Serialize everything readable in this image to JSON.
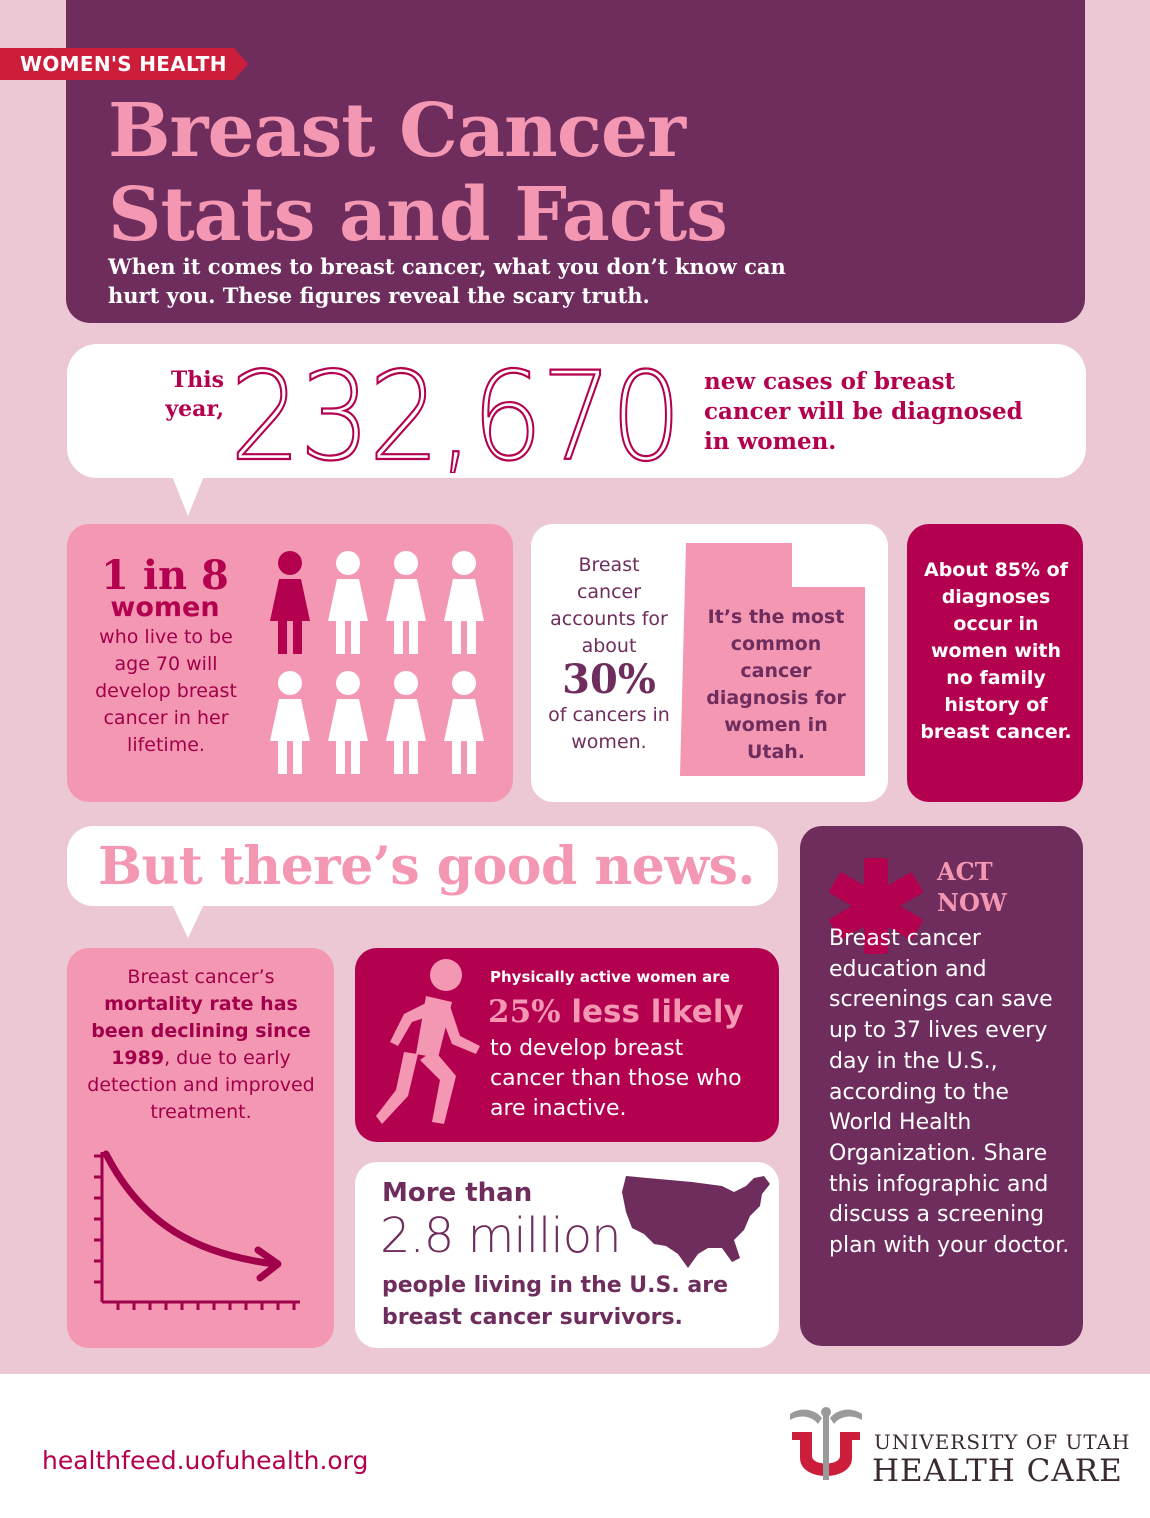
{
  "colors": {
    "background": "#ecc8d4",
    "plum": "#6e2d5d",
    "pink": "#f497b3",
    "magenta": "#b3004f",
    "red_tag": "#cc1d3a",
    "white": "#ffffff"
  },
  "header": {
    "tag": "WOMEN'S HEALTH",
    "title_line1": "Breast Cancer",
    "title_line2": "Stats and Facts",
    "subtitle": "When it comes to breast cancer, what you don’t know can hurt you. These figures reveal the scary truth."
  },
  "cases": {
    "lead": "This year,",
    "number": "232,670",
    "trail": "new cases of breast cancer will be diagnosed in women."
  },
  "one_in_eight": {
    "stat": "1 in 8",
    "word": "women",
    "description": "who live to be age 70 will develop breast cancer in her lifetime.",
    "icon_count": 8,
    "highlighted": 1
  },
  "thirty_percent": {
    "lead": "Breast cancer accounts for about",
    "stat": "30%",
    "trail": "of cancers in women.",
    "utah_text": "It’s the most common cancer diagnosis for women in Utah."
  },
  "family_history": {
    "text": "About 85% of diagnoses occur in women with no family history of breast cancer."
  },
  "good_news": {
    "headline": "But there’s good news."
  },
  "mortality": {
    "text_pre": "Breast cancer’s",
    "text_bold": "mortality rate has been declining since 1989",
    "text_post": ", due to early detection and improved treatment."
  },
  "active": {
    "lead": "Physically active women are",
    "stat_number": "25%",
    "stat_words": "less likely",
    "trail": "to develop breast cancer than those who are inactive."
  },
  "survivors": {
    "lead": "More than",
    "number": "2.8 million",
    "trail": "people living in the U.S. are breast cancer survivors."
  },
  "act_now": {
    "title_line1": "ACT",
    "title_line2": "NOW",
    "text": "Breast cancer education and screenings can save up to 37 lives every day in the U.S., according to the World Health Organization. Share this infographic and discuss a screening plan with your doctor."
  },
  "footer": {
    "url": "healthfeed.uofuhealth.org",
    "org_line1": "UNIVERSITY OF UTAH",
    "org_line2": "HEALTH CARE"
  },
  "icons": {
    "tag_ribbon": "ribbon-tag-icon",
    "woman": "woman-icon",
    "utah_map": "utah-map-icon",
    "asterisk": "asterisk-icon",
    "runner": "runner-icon",
    "declining_chart": "declining-chart-icon",
    "usa_map": "usa-map-icon",
    "logo": "uofu-logo-icon"
  }
}
